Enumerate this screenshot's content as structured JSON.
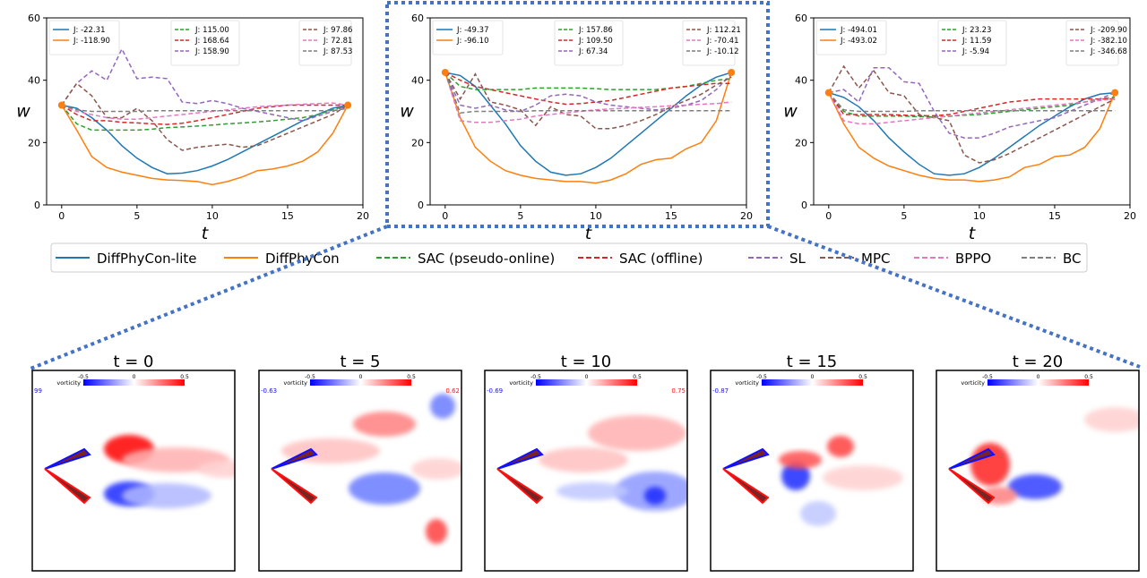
{
  "colors": {
    "DiffPhyCon-lite": "#1f77b4",
    "DiffPhyCon": "#ff7f0e",
    "SAC (pseudo-online)": "#2ca02c",
    "SAC (offline)": "#d62728",
    "SL": "#9467bd",
    "MPC": "#8c564b",
    "BPPO": "#e377c2",
    "BC": "#7f7f7f",
    "highlight": "#4472c4"
  },
  "legend": {
    "items": [
      {
        "label": "DiffPhyCon-lite",
        "style": "solid"
      },
      {
        "label": "DiffPhyCon",
        "style": "solid"
      },
      {
        "label": "SAC (pseudo-online)",
        "style": "dashed"
      },
      {
        "label": "SAC (offline)",
        "style": "dashed"
      },
      {
        "label": "SL",
        "style": "dashed"
      },
      {
        "label": "MPC",
        "style": "dashed"
      },
      {
        "label": "BPPO",
        "style": "dashed"
      },
      {
        "label": "BC",
        "style": "dashed"
      }
    ]
  },
  "chart_data": [
    {
      "type": "line",
      "xlabel": "t",
      "ylabel": "w",
      "xlim": [
        -1,
        20
      ],
      "ylim": [
        0,
        60
      ],
      "xticks": [
        "0",
        "5",
        "10",
        "15",
        "20"
      ],
      "yticks": [
        "0",
        "20",
        "40",
        "60"
      ],
      "grid": false,
      "legend_entries": [
        {
          "name": "DiffPhyCon-lite",
          "text": "J: -22.31"
        },
        {
          "name": "DiffPhyCon",
          "text": "J: -118.90"
        },
        {
          "name": "SAC (pseudo-online)",
          "text": "J: 115.00"
        },
        {
          "name": "SAC (offline)",
          "text": "J: 168.64"
        },
        {
          "name": "SL",
          "text": "J: 158.90"
        },
        {
          "name": "MPC",
          "text": "J: 97.86"
        },
        {
          "name": "BPPO",
          "text": "J: 72.81"
        },
        {
          "name": "BC",
          "text": "J: 87.53"
        }
      ],
      "endpoints": [
        [
          0,
          32
        ],
        [
          19,
          32
        ]
      ],
      "series": [
        {
          "name": "DiffPhyCon-lite",
          "values": [
            32,
            31,
            28,
            24,
            19,
            15,
            12,
            10,
            10.2,
            11,
            12.5,
            14.5,
            17,
            19.5,
            22,
            24.5,
            27,
            29,
            31,
            32
          ]
        },
        {
          "name": "DiffPhyCon",
          "values": [
            32,
            24,
            15.5,
            12,
            10.5,
            9.5,
            8.5,
            8,
            7.8,
            7.5,
            6.5,
            7.5,
            9,
            11,
            11.5,
            12.5,
            14,
            17,
            23,
            32
          ]
        },
        {
          "name": "SAC (pseudo-online)",
          "values": [
            32,
            26,
            24,
            24,
            24,
            24,
            24.3,
            24.8,
            25,
            25.3,
            25.6,
            26,
            26.3,
            26.6,
            27,
            27.5,
            28,
            29,
            30.5,
            32
          ]
        },
        {
          "name": "SAC (offline)",
          "values": [
            32,
            29,
            27,
            27,
            26.5,
            26.3,
            26,
            25.8,
            26.2,
            27,
            28,
            29,
            30,
            31,
            31.5,
            32,
            32,
            32,
            32,
            32
          ]
        },
        {
          "name": "SL",
          "values": [
            32,
            39,
            43,
            40,
            50,
            40.5,
            41,
            40.5,
            33,
            32.5,
            33.5,
            32.5,
            31,
            30,
            29,
            28,
            27,
            28.5,
            30,
            32
          ]
        },
        {
          "name": "MPC",
          "values": [
            32,
            39,
            35,
            28,
            28,
            31,
            27,
            21,
            17.5,
            18.5,
            19,
            19.5,
            18.5,
            19,
            21,
            23,
            25,
            27,
            29,
            32
          ]
        },
        {
          "name": "BPPO",
          "values": [
            32,
            30,
            29,
            28,
            27.5,
            27.5,
            28,
            28.5,
            29,
            29.5,
            30,
            30.5,
            31,
            31.5,
            31.8,
            32,
            32.3,
            32.5,
            32.7,
            32
          ]
        },
        {
          "name": "BC",
          "values": [
            32,
            30.5,
            30,
            30,
            30,
            30,
            30.2,
            30.2,
            30.2,
            30.2,
            30.2,
            30.2,
            30.2,
            30.2,
            30.2,
            30.2,
            30.2,
            30.2,
            30.2,
            31
          ]
        }
      ]
    },
    {
      "type": "line",
      "xlabel": "t",
      "ylabel": "w",
      "xlim": [
        -1,
        20
      ],
      "ylim": [
        0,
        60
      ],
      "xticks": [
        "0",
        "5",
        "10",
        "15",
        "20"
      ],
      "yticks": [
        "0",
        "20",
        "40",
        "60"
      ],
      "grid": false,
      "legend_entries": [
        {
          "name": "DiffPhyCon-lite",
          "text": "J: -49.37"
        },
        {
          "name": "DiffPhyCon",
          "text": "J: -96.10"
        },
        {
          "name": "SAC (pseudo-online)",
          "text": "J: 157.86"
        },
        {
          "name": "SAC (offline)",
          "text": "J: 109.50"
        },
        {
          "name": "SL",
          "text": "J: 67.34"
        },
        {
          "name": "MPC",
          "text": "J: 112.21"
        },
        {
          "name": "BPPO",
          "text": "J: -70.41"
        },
        {
          "name": "BC",
          "text": "J: -10.12"
        }
      ],
      "endpoints": [
        [
          0,
          42.5
        ],
        [
          19,
          42.5
        ]
      ],
      "series": [
        {
          "name": "DiffPhyCon-lite",
          "values": [
            42.5,
            41.5,
            38,
            32,
            26,
            19,
            14,
            10.5,
            9.5,
            10,
            12,
            15,
            19,
            23,
            27,
            31,
            35,
            38.5,
            41,
            42.5
          ]
        },
        {
          "name": "DiffPhyCon",
          "values": [
            42.5,
            28,
            18.5,
            14,
            11,
            9.5,
            8.5,
            8,
            7.5,
            7.5,
            7,
            8,
            10,
            13,
            14.5,
            15,
            18,
            20,
            27,
            42.5
          ]
        },
        {
          "name": "SAC (pseudo-online)",
          "values": [
            42.5,
            38,
            37,
            37,
            37,
            37,
            37.5,
            37.5,
            37.5,
            37.5,
            37.3,
            37,
            37,
            37,
            37,
            37.5,
            38,
            39,
            40,
            40.5
          ]
        },
        {
          "name": "SAC (offline)",
          "values": [
            42.5,
            40,
            38,
            37,
            36,
            35,
            34,
            33,
            32.3,
            32.5,
            33,
            33.5,
            34.5,
            35.5,
            36.5,
            37.5,
            38,
            38.5,
            39,
            39
          ]
        },
        {
          "name": "SL",
          "values": [
            42.5,
            32,
            31,
            32,
            30.5,
            30,
            32,
            35,
            35.5,
            35,
            33,
            32,
            31.5,
            31,
            30.5,
            31,
            32,
            33.5,
            37,
            42
          ]
        },
        {
          "name": "MPC",
          "values": [
            42.5,
            34,
            42,
            33,
            32,
            30.5,
            25.5,
            31.5,
            29,
            28.5,
            24.5,
            24.5,
            25.5,
            27,
            29,
            31.5,
            33.5,
            35.5,
            38.5,
            41
          ]
        },
        {
          "name": "BPPO",
          "values": [
            42.5,
            27,
            26.5,
            26.5,
            27,
            27.5,
            28.5,
            29,
            29.5,
            30,
            30.5,
            30.8,
            31,
            31.3,
            31.5,
            31.8,
            32,
            32.3,
            32.5,
            33
          ]
        },
        {
          "name": "BC",
          "values": [
            42.5,
            29.5,
            30,
            30,
            30,
            30,
            30.2,
            30.2,
            30.2,
            30.2,
            30.2,
            30.2,
            30.2,
            30.2,
            30.2,
            30.2,
            30.2,
            30.2,
            30.2,
            30.2
          ]
        }
      ]
    },
    {
      "type": "line",
      "xlabel": "t",
      "ylabel": "w",
      "xlim": [
        -1,
        20
      ],
      "ylim": [
        0,
        60
      ],
      "xticks": [
        "0",
        "5",
        "10",
        "15",
        "20"
      ],
      "yticks": [
        "0",
        "20",
        "40",
        "60"
      ],
      "grid": false,
      "legend_entries": [
        {
          "name": "DiffPhyCon-lite",
          "text": "J: -494.01"
        },
        {
          "name": "DiffPhyCon",
          "text": "J: -493.02"
        },
        {
          "name": "SAC (pseudo-online)",
          "text": "J: 23.23"
        },
        {
          "name": "SAC (offline)",
          "text": "J: 11.59"
        },
        {
          "name": "SL",
          "text": "J: -5.94"
        },
        {
          "name": "MPC",
          "text": "J: -209.90"
        },
        {
          "name": "BPPO",
          "text": "J: -382.10"
        },
        {
          "name": "BC",
          "text": "J: -346.68"
        }
      ],
      "endpoints": [
        [
          0,
          36
        ],
        [
          19,
          36
        ]
      ],
      "series": [
        {
          "name": "DiffPhyCon-lite",
          "values": [
            36,
            34.5,
            31.5,
            27,
            21.5,
            17,
            13,
            10,
            9.5,
            10,
            12,
            15,
            18.5,
            22,
            25.5,
            28.5,
            31.5,
            34,
            35.5,
            36
          ]
        },
        {
          "name": "DiffPhyCon",
          "values": [
            36,
            26,
            18.5,
            15,
            12.5,
            11,
            9.5,
            8.5,
            8,
            8,
            7.5,
            8,
            9,
            12,
            13,
            15.5,
            16,
            18.5,
            24.5,
            36
          ]
        },
        {
          "name": "SAC (pseudo-online)",
          "values": [
            36,
            30,
            28.5,
            28.5,
            28.5,
            28.5,
            28.3,
            28.2,
            28.4,
            28.8,
            29,
            29.5,
            30,
            30.5,
            31,
            31.5,
            32,
            33,
            34,
            34.5
          ]
        },
        {
          "name": "SAC (offline)",
          "values": [
            36,
            29,
            29,
            29,
            29,
            28.8,
            28.6,
            28.6,
            29,
            30,
            31,
            32,
            33,
            33.5,
            34,
            34,
            34,
            34,
            34,
            34
          ]
        },
        {
          "name": "SL",
          "values": [
            36,
            37,
            33,
            44,
            44,
            39.5,
            39,
            30,
            23,
            21.5,
            21.5,
            23,
            25,
            26,
            27,
            28,
            30,
            32,
            34,
            36
          ]
        },
        {
          "name": "MPC",
          "values": [
            36,
            44.5,
            37.5,
            43,
            36,
            35,
            29,
            28,
            27,
            16,
            13.5,
            14.5,
            16.5,
            19,
            21.5,
            24,
            26.5,
            29,
            31.5,
            34
          ]
        },
        {
          "name": "BPPO",
          "values": [
            36,
            27,
            26,
            26,
            26.5,
            27,
            27.5,
            28,
            28.5,
            29,
            29.5,
            30,
            30.5,
            31,
            31.5,
            32,
            32.5,
            33,
            33.5,
            34
          ]
        },
        {
          "name": "BC",
          "values": [
            36,
            30.5,
            30,
            30,
            30,
            30,
            30.2,
            30.2,
            30.2,
            30.2,
            30.2,
            30.2,
            30.2,
            30.2,
            30.2,
            30.2,
            30.2,
            30.2,
            30.2,
            30.2
          ]
        }
      ]
    }
  ],
  "frames": [
    {
      "title": "t = 0",
      "vmin": "99",
      "vmax": "",
      "variant": 0
    },
    {
      "title": "t = 5",
      "vmin": "-0.63",
      "vmax": "0.62",
      "variant": 1
    },
    {
      "title": "t = 10",
      "vmin": "-0.69",
      "vmax": "0.75",
      "variant": 2
    },
    {
      "title": "t = 15",
      "vmin": "-0.87",
      "vmax": "",
      "variant": 3
    },
    {
      "title": "t = 20",
      "vmin": "",
      "vmax": "",
      "variant": 4
    }
  ],
  "colorbar": {
    "label": "vorticity",
    "ticks": [
      "-0.5",
      "0",
      "0.5"
    ]
  }
}
